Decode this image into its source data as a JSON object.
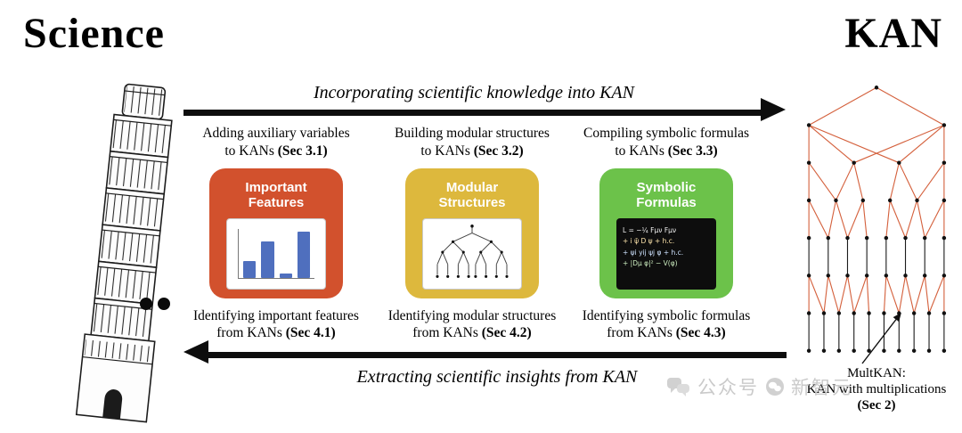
{
  "titles": {
    "science": "Science",
    "kan": "KAN"
  },
  "flow": {
    "top_arrow_label": "Incorporating scientific knowledge into KAN",
    "bottom_arrow_label": "Extracting scientific insights from KAN"
  },
  "card_colors": [
    "#d2512d",
    "#ddb83d",
    "#6cc24a"
  ],
  "columns": [
    {
      "top_line1": "Adding auxiliary variables",
      "top_prefix": "to KANs ",
      "top_sec": "(Sec 3.1)",
      "card_title_line1": "Important",
      "card_title_line2": "Features",
      "bottom_line1": "Identifying important features",
      "bottom_prefix": "from KANs ",
      "bottom_sec": "(Sec 4.1)",
      "chart": {
        "type": "bar",
        "values": [
          35,
          75,
          10,
          95
        ],
        "bar_color": "#4f6fbe"
      }
    },
    {
      "top_line1": "Building modular structures",
      "top_prefix": "to KANs ",
      "top_sec": "(Sec 3.2)",
      "card_title_line1": "Modular",
      "card_title_line2": "Structures",
      "bottom_line1": "Identifying modular structures",
      "bottom_prefix": "from KANs ",
      "bottom_sec": "(Sec 4.2)"
    },
    {
      "top_line1": "Compiling symbolic formulas",
      "top_prefix": "to KANs ",
      "top_sec": "(Sec 3.3)",
      "card_title_line1": "Symbolic",
      "card_title_line2": "Formulas",
      "bottom_line1": "Identifying symbolic formulas",
      "bottom_prefix": "from KANs ",
      "bottom_sec": "(Sec 4.3)",
      "formulas": [
        "L = −¼ Fμν Fμν",
        "+ i ψ̄ D ψ + h.c.",
        "+ ψi yij ψj φ + h.c.",
        "+ |Dμ φ|² − V(φ)"
      ]
    }
  ],
  "multkan": {
    "line1": "MultKAN:",
    "line2": "KAN with multiplications",
    "sec": "(Sec 2)"
  },
  "kan_network": {
    "layers": [
      1,
      2,
      4,
      6,
      8,
      8,
      10,
      10
    ],
    "edge_red": "#d4603c",
    "edge_black": "#1c1c1c",
    "node_color": "#111111"
  },
  "icons": {
    "watermark_left": "chat-bubbles",
    "watermark_middle": "wechat-logo"
  },
  "watermark": {
    "label1": "公众号",
    "label2": "新智元"
  }
}
